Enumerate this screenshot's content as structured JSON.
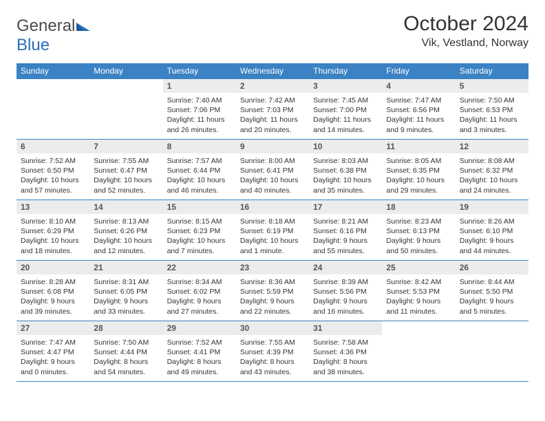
{
  "logo": {
    "text1": "General",
    "text2": "Blue"
  },
  "title": "October 2024",
  "location": "Vik, Vestland, Norway",
  "colors": {
    "header_bg": "#3b82c4",
    "header_text": "#ffffff",
    "daynum_bg": "#ececec",
    "border": "#3b82c4",
    "logo_gray": "#5e5e5e",
    "logo_blue": "#2a6fb5"
  },
  "dayNames": [
    "Sunday",
    "Monday",
    "Tuesday",
    "Wednesday",
    "Thursday",
    "Friday",
    "Saturday"
  ],
  "weeks": [
    [
      null,
      null,
      {
        "n": "1",
        "sunrise": "7:40 AM",
        "sunset": "7:06 PM",
        "daylight": "11 hours and 26 minutes."
      },
      {
        "n": "2",
        "sunrise": "7:42 AM",
        "sunset": "7:03 PM",
        "daylight": "11 hours and 20 minutes."
      },
      {
        "n": "3",
        "sunrise": "7:45 AM",
        "sunset": "7:00 PM",
        "daylight": "11 hours and 14 minutes."
      },
      {
        "n": "4",
        "sunrise": "7:47 AM",
        "sunset": "6:56 PM",
        "daylight": "11 hours and 9 minutes."
      },
      {
        "n": "5",
        "sunrise": "7:50 AM",
        "sunset": "6:53 PM",
        "daylight": "11 hours and 3 minutes."
      }
    ],
    [
      {
        "n": "6",
        "sunrise": "7:52 AM",
        "sunset": "6:50 PM",
        "daylight": "10 hours and 57 minutes."
      },
      {
        "n": "7",
        "sunrise": "7:55 AM",
        "sunset": "6:47 PM",
        "daylight": "10 hours and 52 minutes."
      },
      {
        "n": "8",
        "sunrise": "7:57 AM",
        "sunset": "6:44 PM",
        "daylight": "10 hours and 46 minutes."
      },
      {
        "n": "9",
        "sunrise": "8:00 AM",
        "sunset": "6:41 PM",
        "daylight": "10 hours and 40 minutes."
      },
      {
        "n": "10",
        "sunrise": "8:03 AM",
        "sunset": "6:38 PM",
        "daylight": "10 hours and 35 minutes."
      },
      {
        "n": "11",
        "sunrise": "8:05 AM",
        "sunset": "6:35 PM",
        "daylight": "10 hours and 29 minutes."
      },
      {
        "n": "12",
        "sunrise": "8:08 AM",
        "sunset": "6:32 PM",
        "daylight": "10 hours and 24 minutes."
      }
    ],
    [
      {
        "n": "13",
        "sunrise": "8:10 AM",
        "sunset": "6:29 PM",
        "daylight": "10 hours and 18 minutes."
      },
      {
        "n": "14",
        "sunrise": "8:13 AM",
        "sunset": "6:26 PM",
        "daylight": "10 hours and 12 minutes."
      },
      {
        "n": "15",
        "sunrise": "8:15 AM",
        "sunset": "6:23 PM",
        "daylight": "10 hours and 7 minutes."
      },
      {
        "n": "16",
        "sunrise": "8:18 AM",
        "sunset": "6:19 PM",
        "daylight": "10 hours and 1 minute."
      },
      {
        "n": "17",
        "sunrise": "8:21 AM",
        "sunset": "6:16 PM",
        "daylight": "9 hours and 55 minutes."
      },
      {
        "n": "18",
        "sunrise": "8:23 AM",
        "sunset": "6:13 PM",
        "daylight": "9 hours and 50 minutes."
      },
      {
        "n": "19",
        "sunrise": "8:26 AM",
        "sunset": "6:10 PM",
        "daylight": "9 hours and 44 minutes."
      }
    ],
    [
      {
        "n": "20",
        "sunrise": "8:28 AM",
        "sunset": "6:08 PM",
        "daylight": "9 hours and 39 minutes."
      },
      {
        "n": "21",
        "sunrise": "8:31 AM",
        "sunset": "6:05 PM",
        "daylight": "9 hours and 33 minutes."
      },
      {
        "n": "22",
        "sunrise": "8:34 AM",
        "sunset": "6:02 PM",
        "daylight": "9 hours and 27 minutes."
      },
      {
        "n": "23",
        "sunrise": "8:36 AM",
        "sunset": "5:59 PM",
        "daylight": "9 hours and 22 minutes."
      },
      {
        "n": "24",
        "sunrise": "8:39 AM",
        "sunset": "5:56 PM",
        "daylight": "9 hours and 16 minutes."
      },
      {
        "n": "25",
        "sunrise": "8:42 AM",
        "sunset": "5:53 PM",
        "daylight": "9 hours and 11 minutes."
      },
      {
        "n": "26",
        "sunrise": "8:44 AM",
        "sunset": "5:50 PM",
        "daylight": "9 hours and 5 minutes."
      }
    ],
    [
      {
        "n": "27",
        "sunrise": "7:47 AM",
        "sunset": "4:47 PM",
        "daylight": "9 hours and 0 minutes."
      },
      {
        "n": "28",
        "sunrise": "7:50 AM",
        "sunset": "4:44 PM",
        "daylight": "8 hours and 54 minutes."
      },
      {
        "n": "29",
        "sunrise": "7:52 AM",
        "sunset": "4:41 PM",
        "daylight": "8 hours and 49 minutes."
      },
      {
        "n": "30",
        "sunrise": "7:55 AM",
        "sunset": "4:39 PM",
        "daylight": "8 hours and 43 minutes."
      },
      {
        "n": "31",
        "sunrise": "7:58 AM",
        "sunset": "4:36 PM",
        "daylight": "8 hours and 38 minutes."
      },
      null,
      null
    ]
  ],
  "labels": {
    "sunrise": "Sunrise:",
    "sunset": "Sunset:",
    "daylight": "Daylight:"
  }
}
